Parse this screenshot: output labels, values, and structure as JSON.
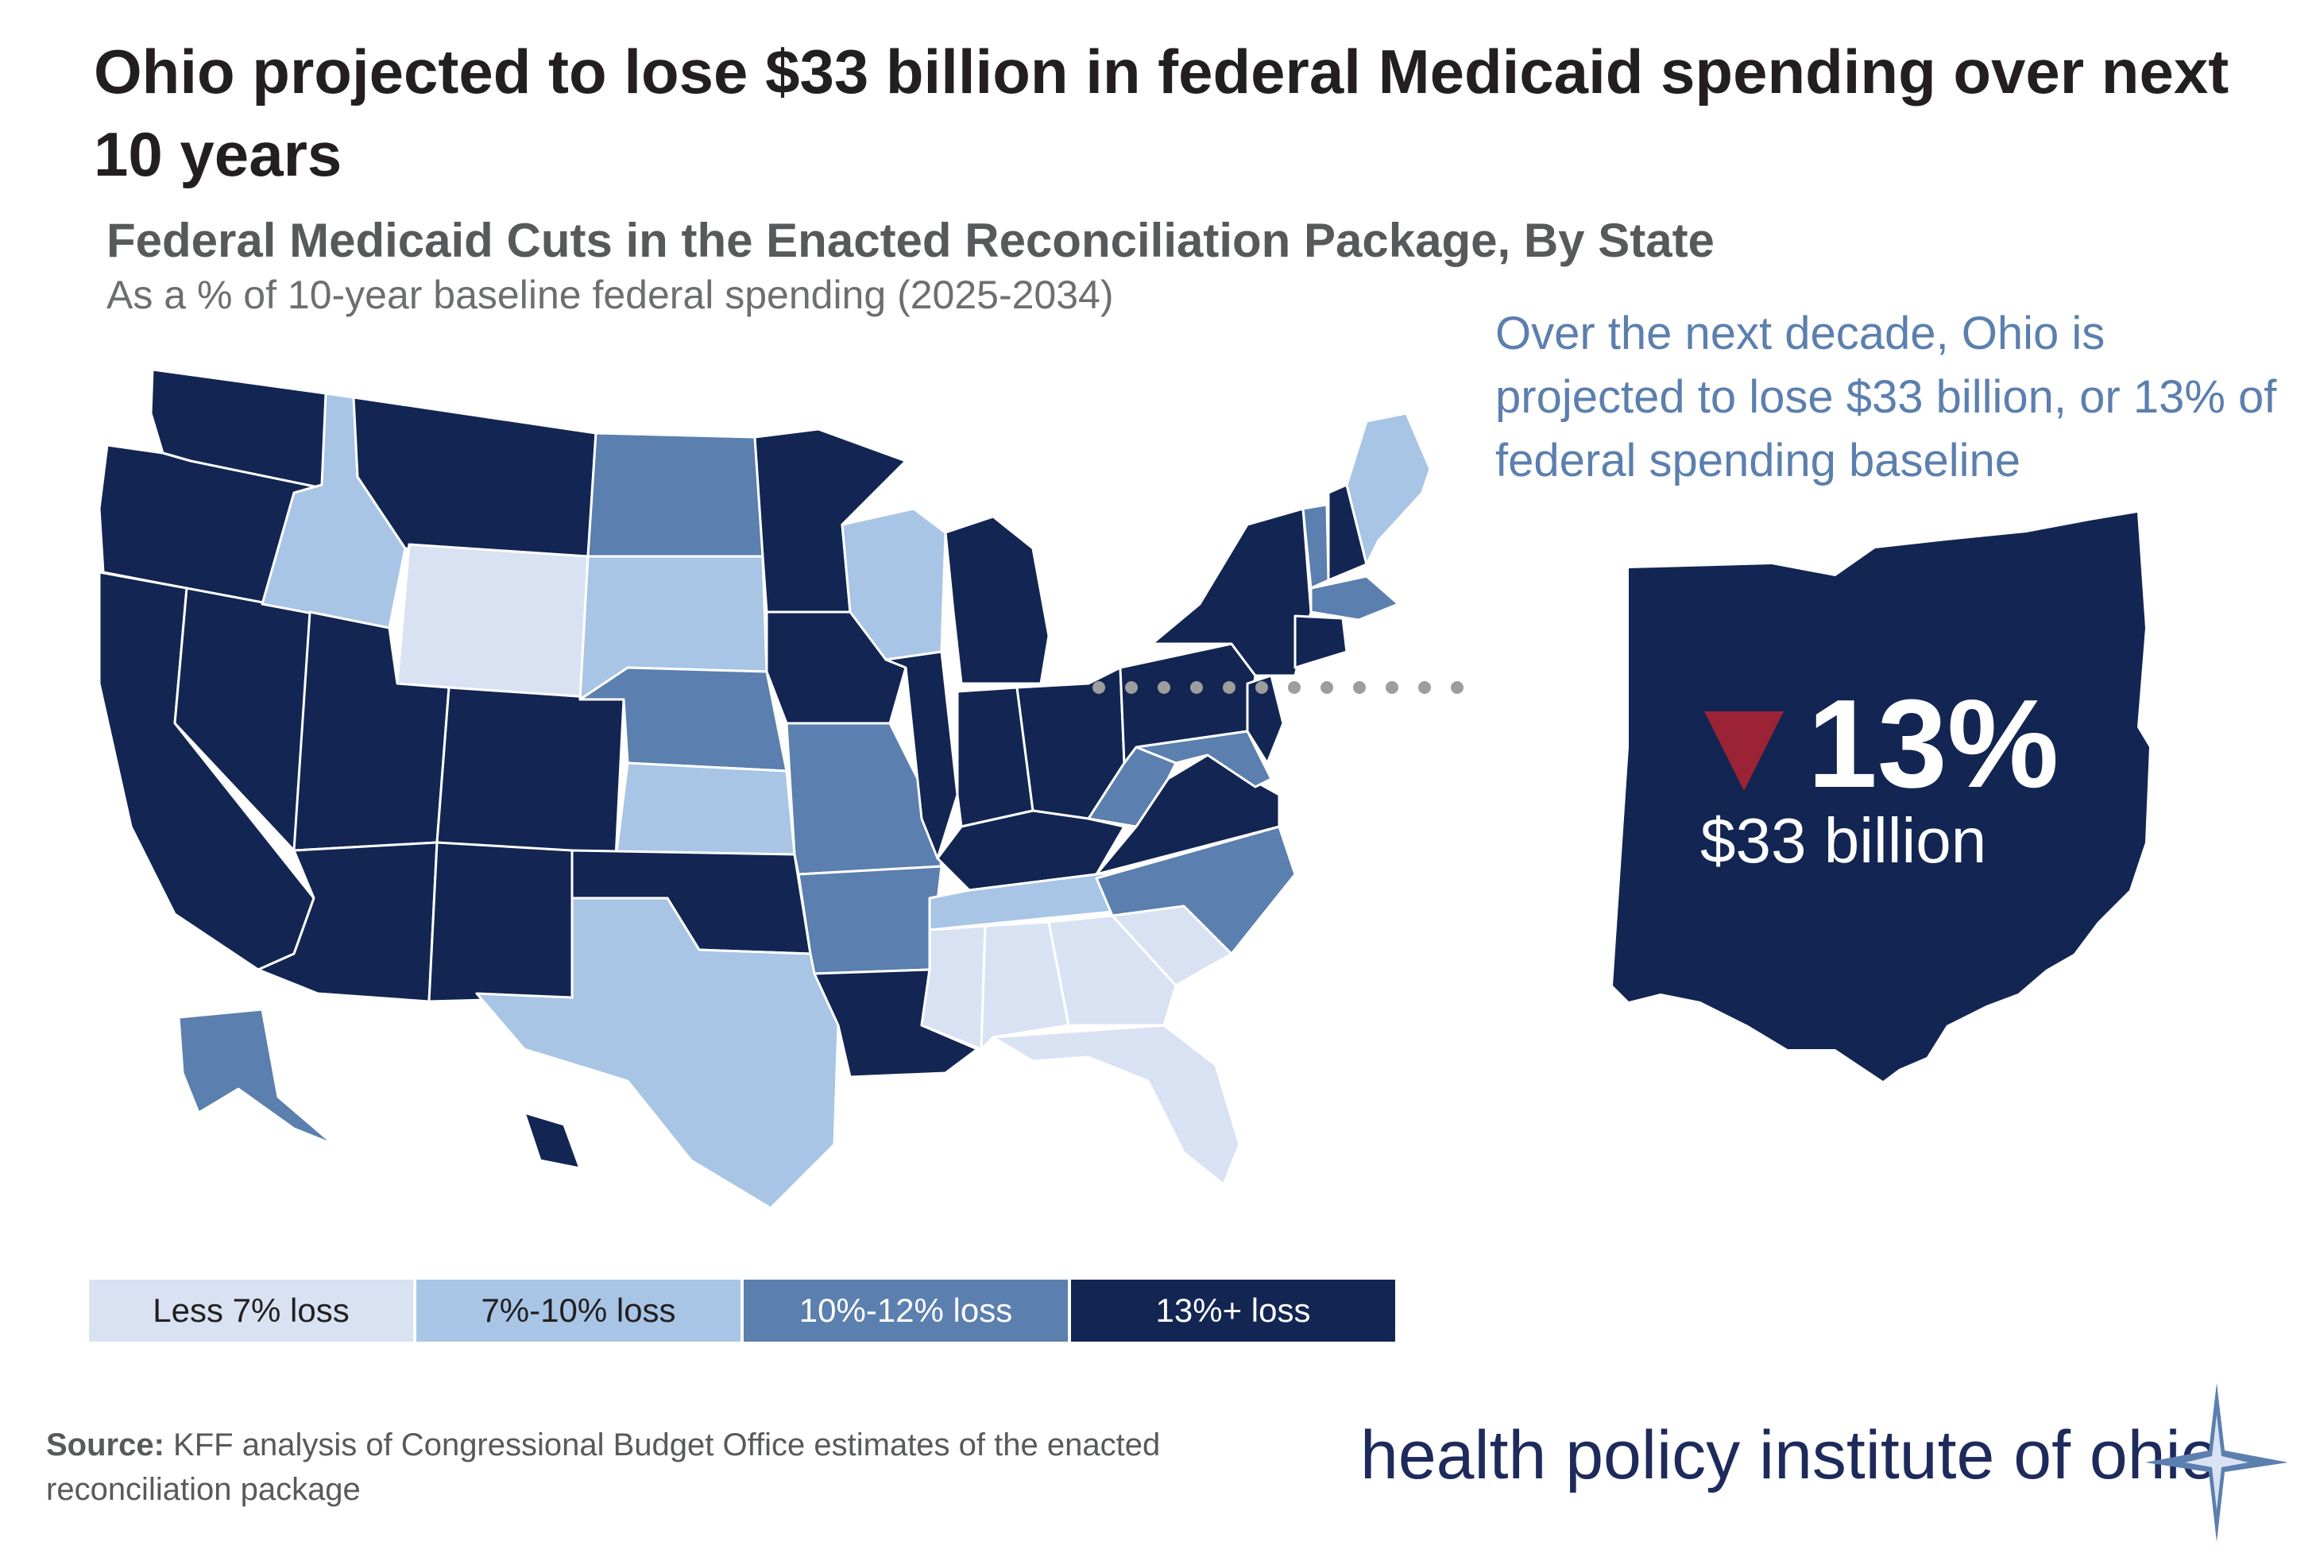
{
  "title": "Ohio projected to lose $33 billion in federal Medicaid spending over next 10 years",
  "subtitle": "Federal Medicaid Cuts in the Enacted Reconciliation Package, By State",
  "subsubtitle": "As a % of 10-year baseline federal spending (2025-2034)",
  "callout": "Over the next decade, Ohio is projected to lose $33 billion, or 13% of federal spending baseline",
  "ohio": {
    "percent": "13%",
    "amount": "$33 billion",
    "arrow_icon": "down-triangle-icon",
    "fill": "#132552",
    "arrow_color": "#9b2335"
  },
  "colors": {
    "less7": "#d9e2f3",
    "p7_10": "#a8c5e6",
    "p10_12": "#5b7fae",
    "p13plus": "#132552",
    "leader": "#9d9d9d"
  },
  "legend": [
    {
      "label": "Less 7% loss",
      "color": "#d9e2f3",
      "text_color": "#231f20"
    },
    {
      "label": "7%-10% loss",
      "color": "#a8c5e6",
      "text_color": "#231f20"
    },
    {
      "label": "10%-12% loss",
      "color": "#5b7fae",
      "text_color": "#ffffff"
    },
    {
      "label": "13%+  loss",
      "color": "#132552",
      "text_color": "#ffffff"
    }
  ],
  "map_data": {
    "WA": "13%+",
    "OR": "13%+",
    "CA": "13%+",
    "NV": "13%+",
    "ID": "7%-10%",
    "MT": "13%+",
    "WY": "Less 7%",
    "UT": "13%+",
    "AZ": "13%+",
    "CO": "13%+",
    "NM": "13%+",
    "ND": "10%-12%",
    "SD": "7%-10%",
    "NE": "10%-12%",
    "KS": "7%-10%",
    "OK": "13%+",
    "TX": "7%-10%",
    "MN": "13%+",
    "IA": "13%+",
    "MO": "10%-12%",
    "AR": "10%-12%",
    "LA": "13%+",
    "WI": "7%-10%",
    "IL": "13%+",
    "MI": "13%+",
    "IN": "13%+",
    "OH": "13%+",
    "KY": "13%+",
    "TN": "7%-10%",
    "MS": "Less 7%",
    "AL": "Less 7%",
    "GA": "Less 7%",
    "FL": "Less 7%",
    "SC": "Less 7%",
    "NC": "10%-12%",
    "VA": "13%+",
    "WV": "10%-12%",
    "PA": "13%+",
    "NY": "13%+",
    "VT": "10%-12%",
    "NH": "13%+",
    "ME": "7%-10%",
    "MA": "10%-12%",
    "CT": "13%+",
    "NJ": "13%+",
    "MD": "10%-12%",
    "AK": "10%-12%",
    "HI": "13%+"
  },
  "source_label": "Source:",
  "source_text": " KFF analysis of Congressional Budget Office estimates of the enacted reconciliation package",
  "logo_text": "health policy institute of ohio",
  "logo_icon": "compass-star-icon"
}
